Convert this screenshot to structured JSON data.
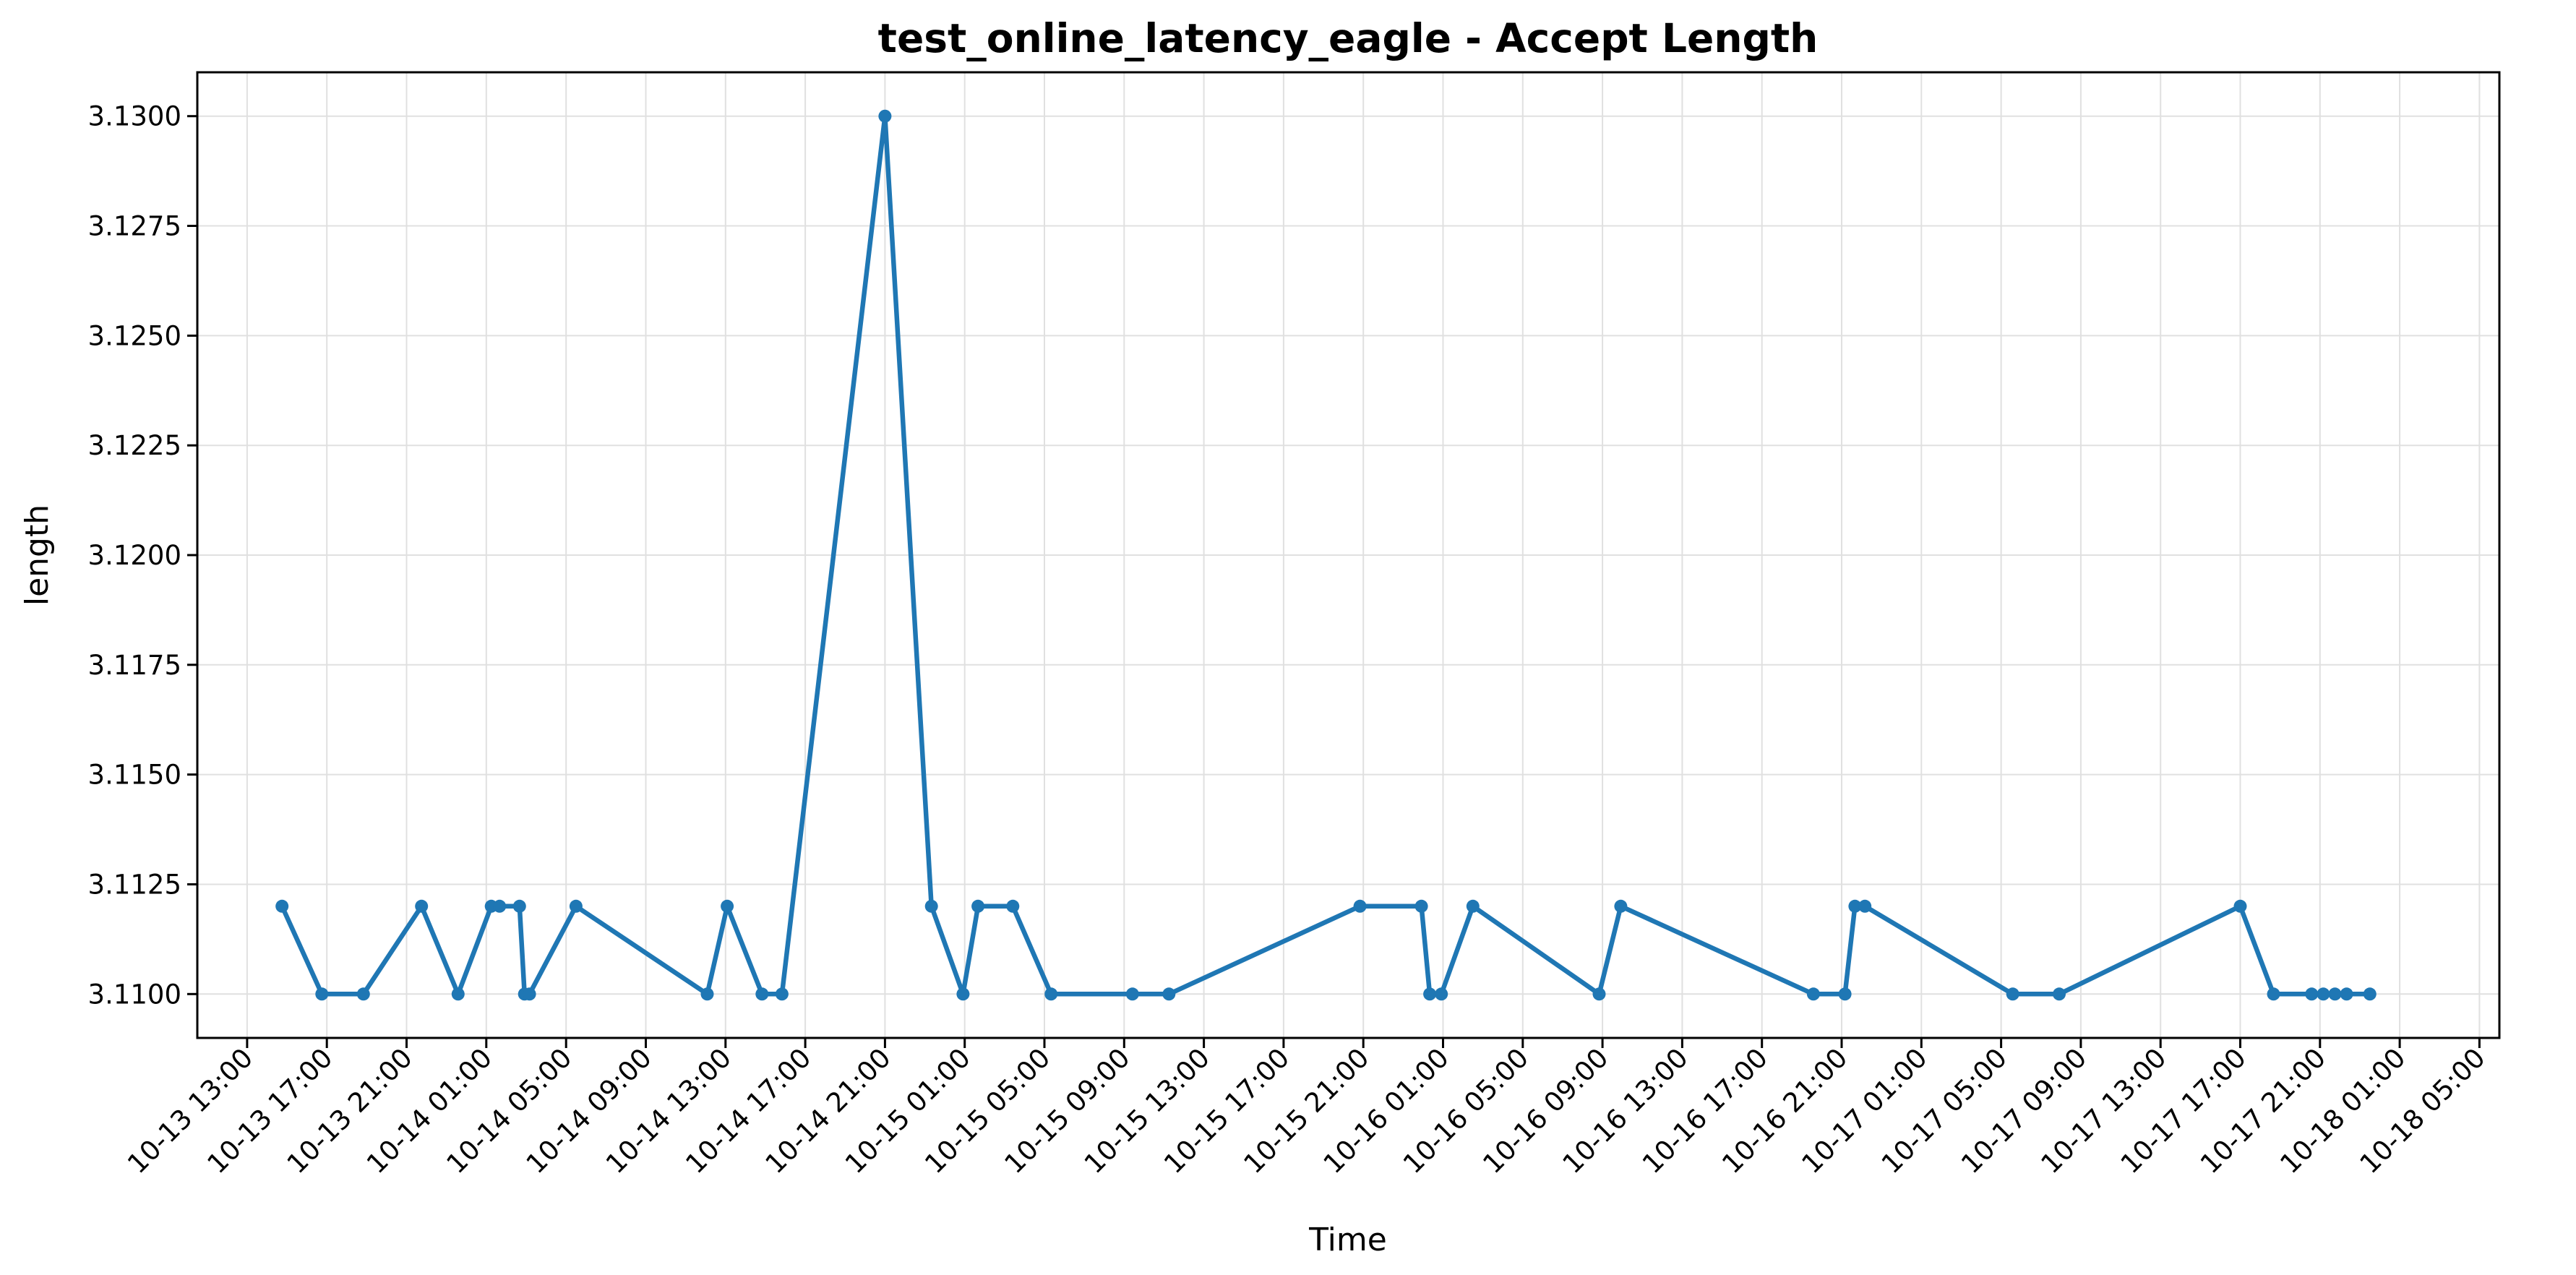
{
  "chart_data": {
    "type": "line",
    "title": "test_online_latency_eagle - Accept Length",
    "xlabel": "Time",
    "ylabel": "length",
    "x_axis_type": "datetime",
    "xlim": [
      "2025-10-13 10:30",
      "2025-10-18 06:00"
    ],
    "ylim": [
      3.109,
      3.131
    ],
    "x_ticks": [
      "10-13 13:00",
      "10-13 17:00",
      "10-13 21:00",
      "10-14 01:00",
      "10-14 05:00",
      "10-14 09:00",
      "10-14 13:00",
      "10-14 17:00",
      "10-14 21:00",
      "10-15 01:00",
      "10-15 05:00",
      "10-15 09:00",
      "10-15 13:00",
      "10-15 17:00",
      "10-15 21:00",
      "10-16 01:00",
      "10-16 05:00",
      "10-16 09:00",
      "10-16 13:00",
      "10-16 17:00",
      "10-16 21:00",
      "10-17 01:00",
      "10-17 05:00",
      "10-17 09:00",
      "10-17 13:00",
      "10-17 17:00",
      "10-17 21:00",
      "10-18 01:00",
      "10-18 05:00"
    ],
    "y_ticks": [
      "3.1100",
      "3.1125",
      "3.1150",
      "3.1175",
      "3.1200",
      "3.1225",
      "3.1250",
      "3.1275",
      "3.1300"
    ],
    "grid": true,
    "legend": "none",
    "color": "#1f77b4",
    "series": [
      {
        "x": [
          "2025-10-13 14:45",
          "2025-10-13 16:45",
          "2025-10-13 18:50",
          "2025-10-13 21:45",
          "2025-10-13 23:35",
          "2025-10-14 01:15",
          "2025-10-14 01:40",
          "2025-10-14 02:40",
          "2025-10-14 02:55",
          "2025-10-14 03:10",
          "2025-10-14 05:30",
          "2025-10-14 12:05",
          "2025-10-14 13:05",
          "2025-10-14 14:50",
          "2025-10-14 15:50",
          "2025-10-14 21:00",
          "2025-10-14 23:20",
          "2025-10-15 00:55",
          "2025-10-15 01:40",
          "2025-10-15 03:25",
          "2025-10-15 05:20",
          "2025-10-15 09:25",
          "2025-10-15 11:15",
          "2025-10-15 20:50",
          "2025-10-15 23:55",
          "2025-10-16 00:20",
          "2025-10-16 00:55",
          "2025-10-16 02:30",
          "2025-10-16 08:50",
          "2025-10-16 09:55",
          "2025-10-16 19:35",
          "2025-10-16 21:10",
          "2025-10-16 21:40",
          "2025-10-16 22:10",
          "2025-10-17 05:35",
          "2025-10-17 07:55",
          "2025-10-17 17:00",
          "2025-10-17 18:40",
          "2025-10-17 20:35",
          "2025-10-17 21:10",
          "2025-10-17 21:45",
          "2025-10-17 22:20",
          "2025-10-17 23:30"
        ],
        "values": [
          3.112,
          3.11,
          3.11,
          3.112,
          3.11,
          3.112,
          3.112,
          3.112,
          3.11,
          3.11,
          3.112,
          3.11,
          3.112,
          3.11,
          3.11,
          3.13,
          3.112,
          3.11,
          3.112,
          3.112,
          3.11,
          3.11,
          3.11,
          3.112,
          3.112,
          3.11,
          3.11,
          3.112,
          3.11,
          3.112,
          3.11,
          3.11,
          3.112,
          3.112,
          3.11,
          3.11,
          3.112,
          3.11,
          3.11,
          3.11,
          3.11,
          3.11,
          3.11
        ]
      }
    ]
  }
}
